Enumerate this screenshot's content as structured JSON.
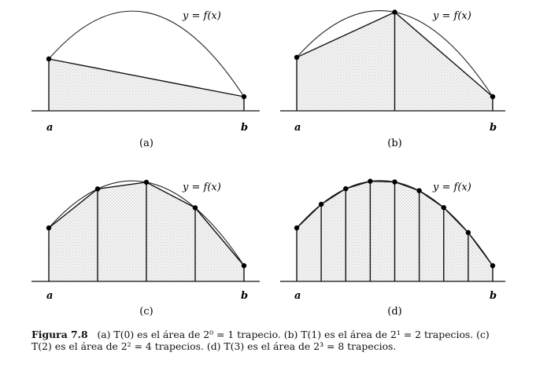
{
  "figure": {
    "panels": [
      {
        "label": "(a)",
        "n": 1,
        "curve_label": "y = f(x)",
        "a_label": "a",
        "b_label": "b"
      },
      {
        "label": "(b)",
        "n": 2,
        "curve_label": "y = f(x)",
        "a_label": "a",
        "b_label": "b"
      },
      {
        "label": "(c)",
        "n": 4,
        "curve_label": "y = f(x)",
        "a_label": "a",
        "b_label": "b"
      },
      {
        "label": "(d)",
        "n": 8,
        "curve_label": "y = f(x)",
        "a_label": "a",
        "b_label": "b"
      }
    ]
  },
  "caption": {
    "title": "Figura 7.8",
    "text": "(a) T(0) es el área de 2⁰ = 1 trapecio. (b) T(1) es el área de 2¹ = 2 trapecios. (c) T(2) es el área de 2² = 4 trapecios. (d) T(3) es el área de 2³ = 8 trapecios."
  }
}
